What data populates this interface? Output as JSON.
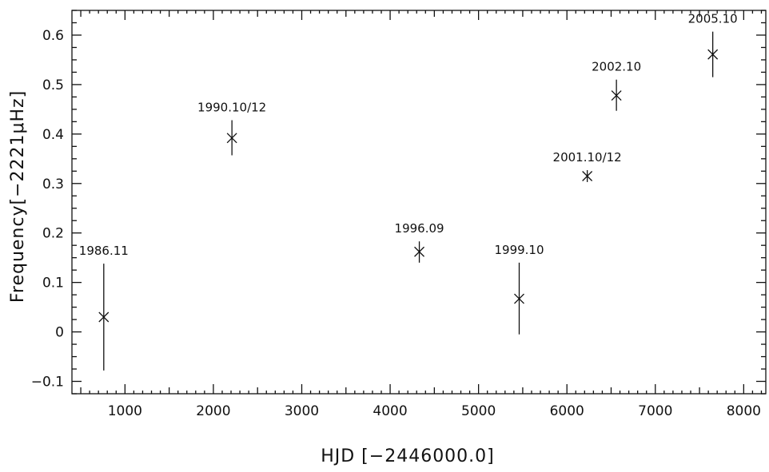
{
  "chart_data": {
    "type": "scatter",
    "title": "",
    "xlabel": "HJD [−2446000.0]",
    "ylabel": "Frequency[−2221μHz]",
    "xlim": [
      400,
      8250
    ],
    "ylim": [
      -0.125,
      0.65
    ],
    "x_major_ticks": [
      1000,
      2000,
      3000,
      4000,
      5000,
      6000,
      7000,
      8000
    ],
    "x_tick_labels": [
      "1000",
      "2000",
      "3000",
      "4000",
      "5000",
      "6000",
      "7000",
      "8000"
    ],
    "y_major_ticks": [
      -0.1,
      0,
      0.1,
      0.2,
      0.3,
      0.4,
      0.5,
      0.6
    ],
    "y_tick_labels": [
      "−0.1",
      "0",
      "0.1",
      "0.2",
      "0.3",
      "0.4",
      "0.5",
      "0.6"
    ],
    "grid": false,
    "marker": "x",
    "points": [
      {
        "label": "1986.11",
        "x": 760,
        "y": 0.03,
        "err_low": -0.078,
        "err_high": 0.138
      },
      {
        "label": "1990.10/12",
        "x": 2210,
        "y": 0.392,
        "err_low": 0.357,
        "err_high": 0.428
      },
      {
        "label": "1996.09",
        "x": 4330,
        "y": 0.162,
        "err_low": 0.14,
        "err_high": 0.183
      },
      {
        "label": "1999.10",
        "x": 5460,
        "y": 0.067,
        "err_low": -0.005,
        "err_high": 0.14
      },
      {
        "label": "2001.10/12",
        "x": 6230,
        "y": 0.315,
        "err_low": 0.303,
        "err_high": 0.327
      },
      {
        "label": "2002.10",
        "x": 6560,
        "y": 0.478,
        "err_low": 0.447,
        "err_high": 0.51
      },
      {
        "label": "2005.10",
        "x": 7650,
        "y": 0.561,
        "err_low": 0.515,
        "err_high": 0.607
      }
    ]
  }
}
